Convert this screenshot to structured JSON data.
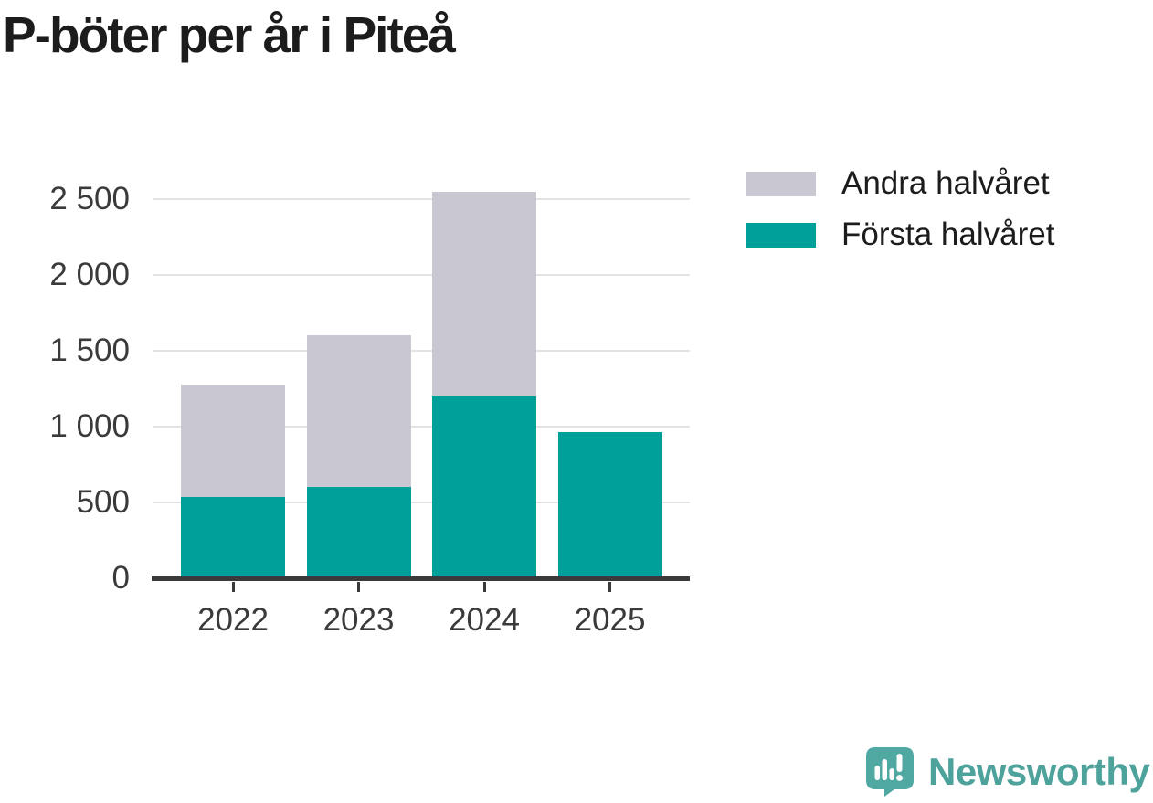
{
  "header": {
    "title": "P-böter per år i Piteå"
  },
  "chart_data": {
    "type": "bar",
    "stacked": true,
    "title": "P-böter per år i Piteå",
    "categories": [
      "2022",
      "2023",
      "2024",
      "2025"
    ],
    "series": [
      {
        "name": "Första halvåret",
        "color": "#00a09a",
        "values": [
          535,
          600,
          1200,
          965
        ]
      },
      {
        "name": "Andra halvåret",
        "color": "#c9c7d2",
        "values": [
          740,
          1000,
          1350,
          0
        ]
      }
    ],
    "totals": [
      1275,
      1600,
      2550,
      965
    ],
    "xlabel": "",
    "ylabel": "",
    "ylim": [
      0,
      2500
    ],
    "yticks": [
      {
        "value": 0,
        "label": "0"
      },
      {
        "value": 500,
        "label": "500"
      },
      {
        "value": 1000,
        "label": "1 000"
      },
      {
        "value": 1500,
        "label": "1 500"
      },
      {
        "value": 2000,
        "label": "2 000"
      },
      {
        "value": 2500,
        "label": "2 500"
      }
    ],
    "grid": "horizontal",
    "legend_position": "right-top"
  },
  "legend": {
    "items": [
      {
        "label": "Andra halvåret",
        "color": "#c9c7d2"
      },
      {
        "label": "Första halvåret",
        "color": "#00a09a"
      }
    ]
  },
  "branding": {
    "wordmark": "Newsworthy",
    "icon": "newsworthy-speech-bubble-bar-chart-icon",
    "wordmark_color": "#4ea29c",
    "icon_color": "#4fa8a1"
  },
  "colors": {
    "background": "#ffffff",
    "title_text": "#1c1c1c",
    "axis_text": "#3a3a3a",
    "axis_line": "#3a3a3a",
    "gridline": "#e3e3e6",
    "first_half": "#00a09a",
    "second_half": "#c9c7d2"
  }
}
